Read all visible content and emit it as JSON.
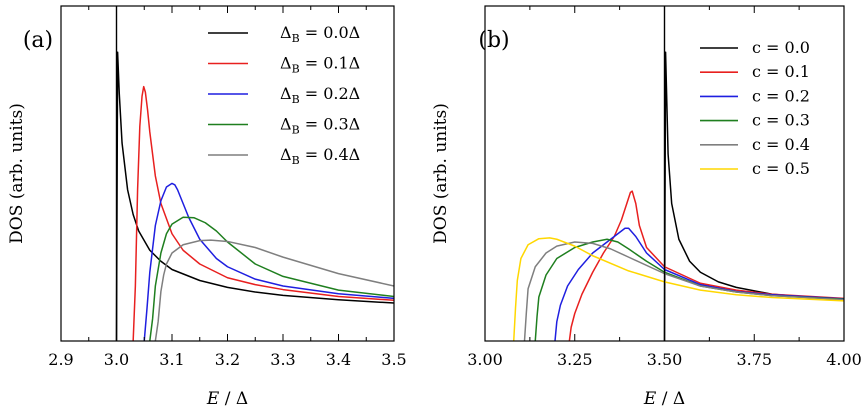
{
  "chart_data": [
    {
      "type": "line",
      "panel_label": "(a)",
      "xlabel": "E / Δ",
      "ylabel": "DOS (arb. units)",
      "xlim": [
        2.9,
        3.5
      ],
      "ylim": [
        0,
        1
      ],
      "x_ticks": [
        "2.9",
        "3.0",
        "3.1",
        "3.2",
        "3.3",
        "3.4",
        "3.5"
      ],
      "legend_position": "top-right",
      "series": [
        {
          "name": "ΔB = 0.0Δ",
          "label_sym": "Δ",
          "label_sub": "B",
          "label_rest": " = 0.0Δ",
          "color": "#000000",
          "threshold": 3.0,
          "vline": true,
          "x": [
            3.002,
            3.005,
            3.01,
            3.02,
            3.03,
            3.04,
            3.06,
            3.08,
            3.1,
            3.15,
            3.2,
            3.25,
            3.3,
            3.4,
            3.5
          ],
          "y": [
            1.05,
            0.9,
            0.72,
            0.55,
            0.46,
            0.4,
            0.33,
            0.29,
            0.26,
            0.22,
            0.195,
            0.178,
            0.166,
            0.15,
            0.138
          ]
        },
        {
          "name": "ΔB = 0.1Δ",
          "label_sym": "Δ",
          "label_sub": "B",
          "label_rest": " = 0.1Δ",
          "color": "#e8201f",
          "threshold": 3.03,
          "x": [
            3.03,
            3.034,
            3.038,
            3.042,
            3.046,
            3.049,
            3.052,
            3.056,
            3.06,
            3.07,
            3.08,
            3.1,
            3.12,
            3.15,
            3.2,
            3.25,
            3.3,
            3.4,
            3.5
          ],
          "y": [
            0.0,
            0.2,
            0.55,
            0.78,
            0.89,
            0.925,
            0.905,
            0.84,
            0.76,
            0.6,
            0.5,
            0.39,
            0.33,
            0.28,
            0.23,
            0.205,
            0.187,
            0.162,
            0.148
          ]
        },
        {
          "name": "ΔB = 0.2Δ",
          "label_sym": "Δ",
          "label_sub": "B",
          "label_rest": " = 0.2Δ",
          "color": "#1f1fe0",
          "threshold": 3.05,
          "x": [
            3.05,
            3.055,
            3.06,
            3.07,
            3.08,
            3.09,
            3.1,
            3.105,
            3.11,
            3.12,
            3.13,
            3.15,
            3.18,
            3.2,
            3.25,
            3.3,
            3.4,
            3.5
          ],
          "y": [
            0.0,
            0.12,
            0.25,
            0.42,
            0.51,
            0.56,
            0.573,
            0.568,
            0.55,
            0.5,
            0.45,
            0.37,
            0.3,
            0.27,
            0.225,
            0.2,
            0.172,
            0.155
          ]
        },
        {
          "name": "ΔB = 0.3Δ",
          "label_sym": "Δ",
          "label_sub": "B",
          "label_rest": " = 0.3Δ",
          "color": "#1f7f1f",
          "threshold": 3.06,
          "x": [
            3.06,
            3.065,
            3.07,
            3.08,
            3.09,
            3.1,
            3.12,
            3.14,
            3.16,
            3.18,
            3.2,
            3.25,
            3.3,
            3.4,
            3.5
          ],
          "y": [
            0.0,
            0.08,
            0.2,
            0.32,
            0.39,
            0.425,
            0.45,
            0.448,
            0.43,
            0.4,
            0.36,
            0.28,
            0.235,
            0.185,
            0.162
          ]
        },
        {
          "name": "ΔB = 0.4Δ",
          "label_sym": "Δ",
          "label_sub": "B",
          "label_rest": " = 0.4Δ",
          "color": "#7f7f7f",
          "threshold": 3.07,
          "x": [
            3.07,
            3.075,
            3.08,
            3.085,
            3.09,
            3.1,
            3.12,
            3.15,
            3.17,
            3.2,
            3.25,
            3.3,
            3.4,
            3.5
          ],
          "y": [
            0.0,
            0.07,
            0.18,
            0.24,
            0.28,
            0.32,
            0.35,
            0.365,
            0.367,
            0.362,
            0.34,
            0.305,
            0.245,
            0.2
          ]
        }
      ]
    },
    {
      "type": "line",
      "panel_label": "(b)",
      "xlabel": "E / Δ",
      "ylabel": "DOS (arb. units)",
      "xlim": [
        3.0,
        4.0
      ],
      "ylim": [
        0,
        1
      ],
      "x_ticks": [
        "3.00",
        "3.25",
        "3.50",
        "3.75",
        "4.00"
      ],
      "legend_position": "top-right",
      "series": [
        {
          "name": "c = 0.0",
          "label_rest": "c = 0.0",
          "color": "#000000",
          "threshold": 3.5,
          "vline": true,
          "x": [
            3.503,
            3.51,
            3.52,
            3.54,
            3.57,
            3.6,
            3.65,
            3.7,
            3.8,
            3.9,
            4.0
          ],
          "y": [
            1.05,
            0.68,
            0.5,
            0.37,
            0.29,
            0.25,
            0.215,
            0.195,
            0.17,
            0.16,
            0.153
          ]
        },
        {
          "name": "c = 0.1",
          "label_rest": "c = 0.1",
          "color": "#e8201f",
          "threshold": 3.235,
          "x": [
            3.235,
            3.24,
            3.25,
            3.27,
            3.3,
            3.33,
            3.36,
            3.38,
            3.395,
            3.405,
            3.41,
            3.42,
            3.43,
            3.45,
            3.5,
            3.6,
            3.7,
            3.8,
            4.0
          ],
          "y": [
            0.0,
            0.05,
            0.1,
            0.17,
            0.25,
            0.32,
            0.38,
            0.44,
            0.5,
            0.54,
            0.545,
            0.5,
            0.42,
            0.34,
            0.27,
            0.21,
            0.185,
            0.17,
            0.155
          ]
        },
        {
          "name": "c = 0.2",
          "label_rest": "c = 0.2",
          "color": "#1f1fe0",
          "threshold": 3.195,
          "x": [
            3.195,
            3.2,
            3.21,
            3.23,
            3.26,
            3.3,
            3.34,
            3.37,
            3.39,
            3.4,
            3.42,
            3.45,
            3.5,
            3.6,
            3.7,
            3.8,
            4.0
          ],
          "y": [
            0.0,
            0.07,
            0.13,
            0.2,
            0.26,
            0.32,
            0.36,
            0.39,
            0.41,
            0.41,
            0.38,
            0.32,
            0.26,
            0.205,
            0.18,
            0.168,
            0.153
          ]
        },
        {
          "name": "c = 0.3",
          "label_rest": "c = 0.3",
          "color": "#1f7f1f",
          "threshold": 3.14,
          "x": [
            3.14,
            3.145,
            3.15,
            3.17,
            3.2,
            3.25,
            3.3,
            3.34,
            3.37,
            3.4,
            3.45,
            3.5,
            3.6,
            3.7,
            3.8,
            4.0
          ],
          "y": [
            0.0,
            0.09,
            0.16,
            0.24,
            0.3,
            0.34,
            0.36,
            0.37,
            0.36,
            0.335,
            0.29,
            0.25,
            0.2,
            0.178,
            0.165,
            0.152
          ]
        },
        {
          "name": "c = 0.4",
          "label_rest": "c = 0.4",
          "color": "#7f7f7f",
          "threshold": 3.11,
          "x": [
            3.11,
            3.115,
            3.12,
            3.14,
            3.17,
            3.2,
            3.25,
            3.3,
            3.35,
            3.4,
            3.5,
            3.6,
            3.7,
            3.8,
            4.0
          ],
          "y": [
            0.0,
            0.1,
            0.19,
            0.27,
            0.32,
            0.345,
            0.36,
            0.355,
            0.335,
            0.305,
            0.245,
            0.2,
            0.178,
            0.165,
            0.15
          ]
        },
        {
          "name": "c = 0.5",
          "label_rest": "c = 0.5",
          "color": "#ffd700",
          "threshold": 3.08,
          "x": [
            3.08,
            3.085,
            3.09,
            3.1,
            3.12,
            3.15,
            3.18,
            3.2,
            3.25,
            3.3,
            3.4,
            3.5,
            3.6,
            3.7,
            3.8,
            4.0
          ],
          "y": [
            0.0,
            0.12,
            0.22,
            0.3,
            0.35,
            0.372,
            0.375,
            0.37,
            0.345,
            0.31,
            0.255,
            0.215,
            0.185,
            0.168,
            0.158,
            0.146
          ]
        }
      ]
    }
  ]
}
